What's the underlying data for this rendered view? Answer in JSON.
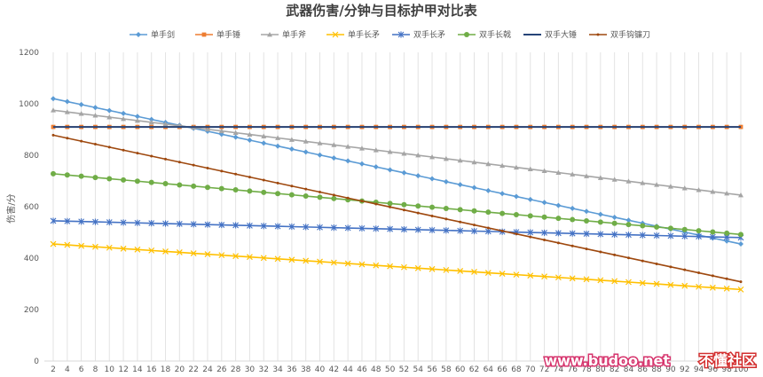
{
  "chart_data": {
    "type": "line",
    "title": "武器伤害/分钟与目标护甲对比表",
    "ylabel": "伤害/分",
    "xlabel": "",
    "ylim": [
      0,
      1200
    ],
    "yticks": [
      0,
      200,
      400,
      600,
      800,
      1000,
      1200
    ],
    "xlim": [
      2,
      100
    ],
    "xtick_step": 2,
    "grid": "vertical",
    "legend": "top",
    "series": [
      {
        "name": "单手剑",
        "color": "#5b9bd5",
        "marker": "diamond",
        "start": 1020,
        "end": 455
      },
      {
        "name": "单手锤",
        "color": "#ed7d31",
        "marker": "square",
        "start": 910,
        "end": 910
      },
      {
        "name": "单手斧",
        "color": "#a5a5a5",
        "marker": "triangle",
        "start": 975,
        "end": 645
      },
      {
        "name": "单手长矛",
        "color": "#ffc000",
        "marker": "x",
        "start": 455,
        "end": 278
      },
      {
        "name": "双手长矛",
        "color": "#4472c4",
        "marker": "star",
        "start": 545,
        "end": 480
      },
      {
        "name": "双手长戟",
        "color": "#70ad47",
        "marker": "circle",
        "start": 728,
        "end": 492
      },
      {
        "name": "双手大锤",
        "color": "#264478",
        "marker": "none",
        "start": 910,
        "end": 910
      },
      {
        "name": "双手钩镰刀",
        "color": "#9e480e",
        "marker": "dot",
        "start": 878,
        "end": 308
      }
    ]
  },
  "watermark": {
    "site": "www.budoo.net",
    "name": "不懂社区"
  }
}
